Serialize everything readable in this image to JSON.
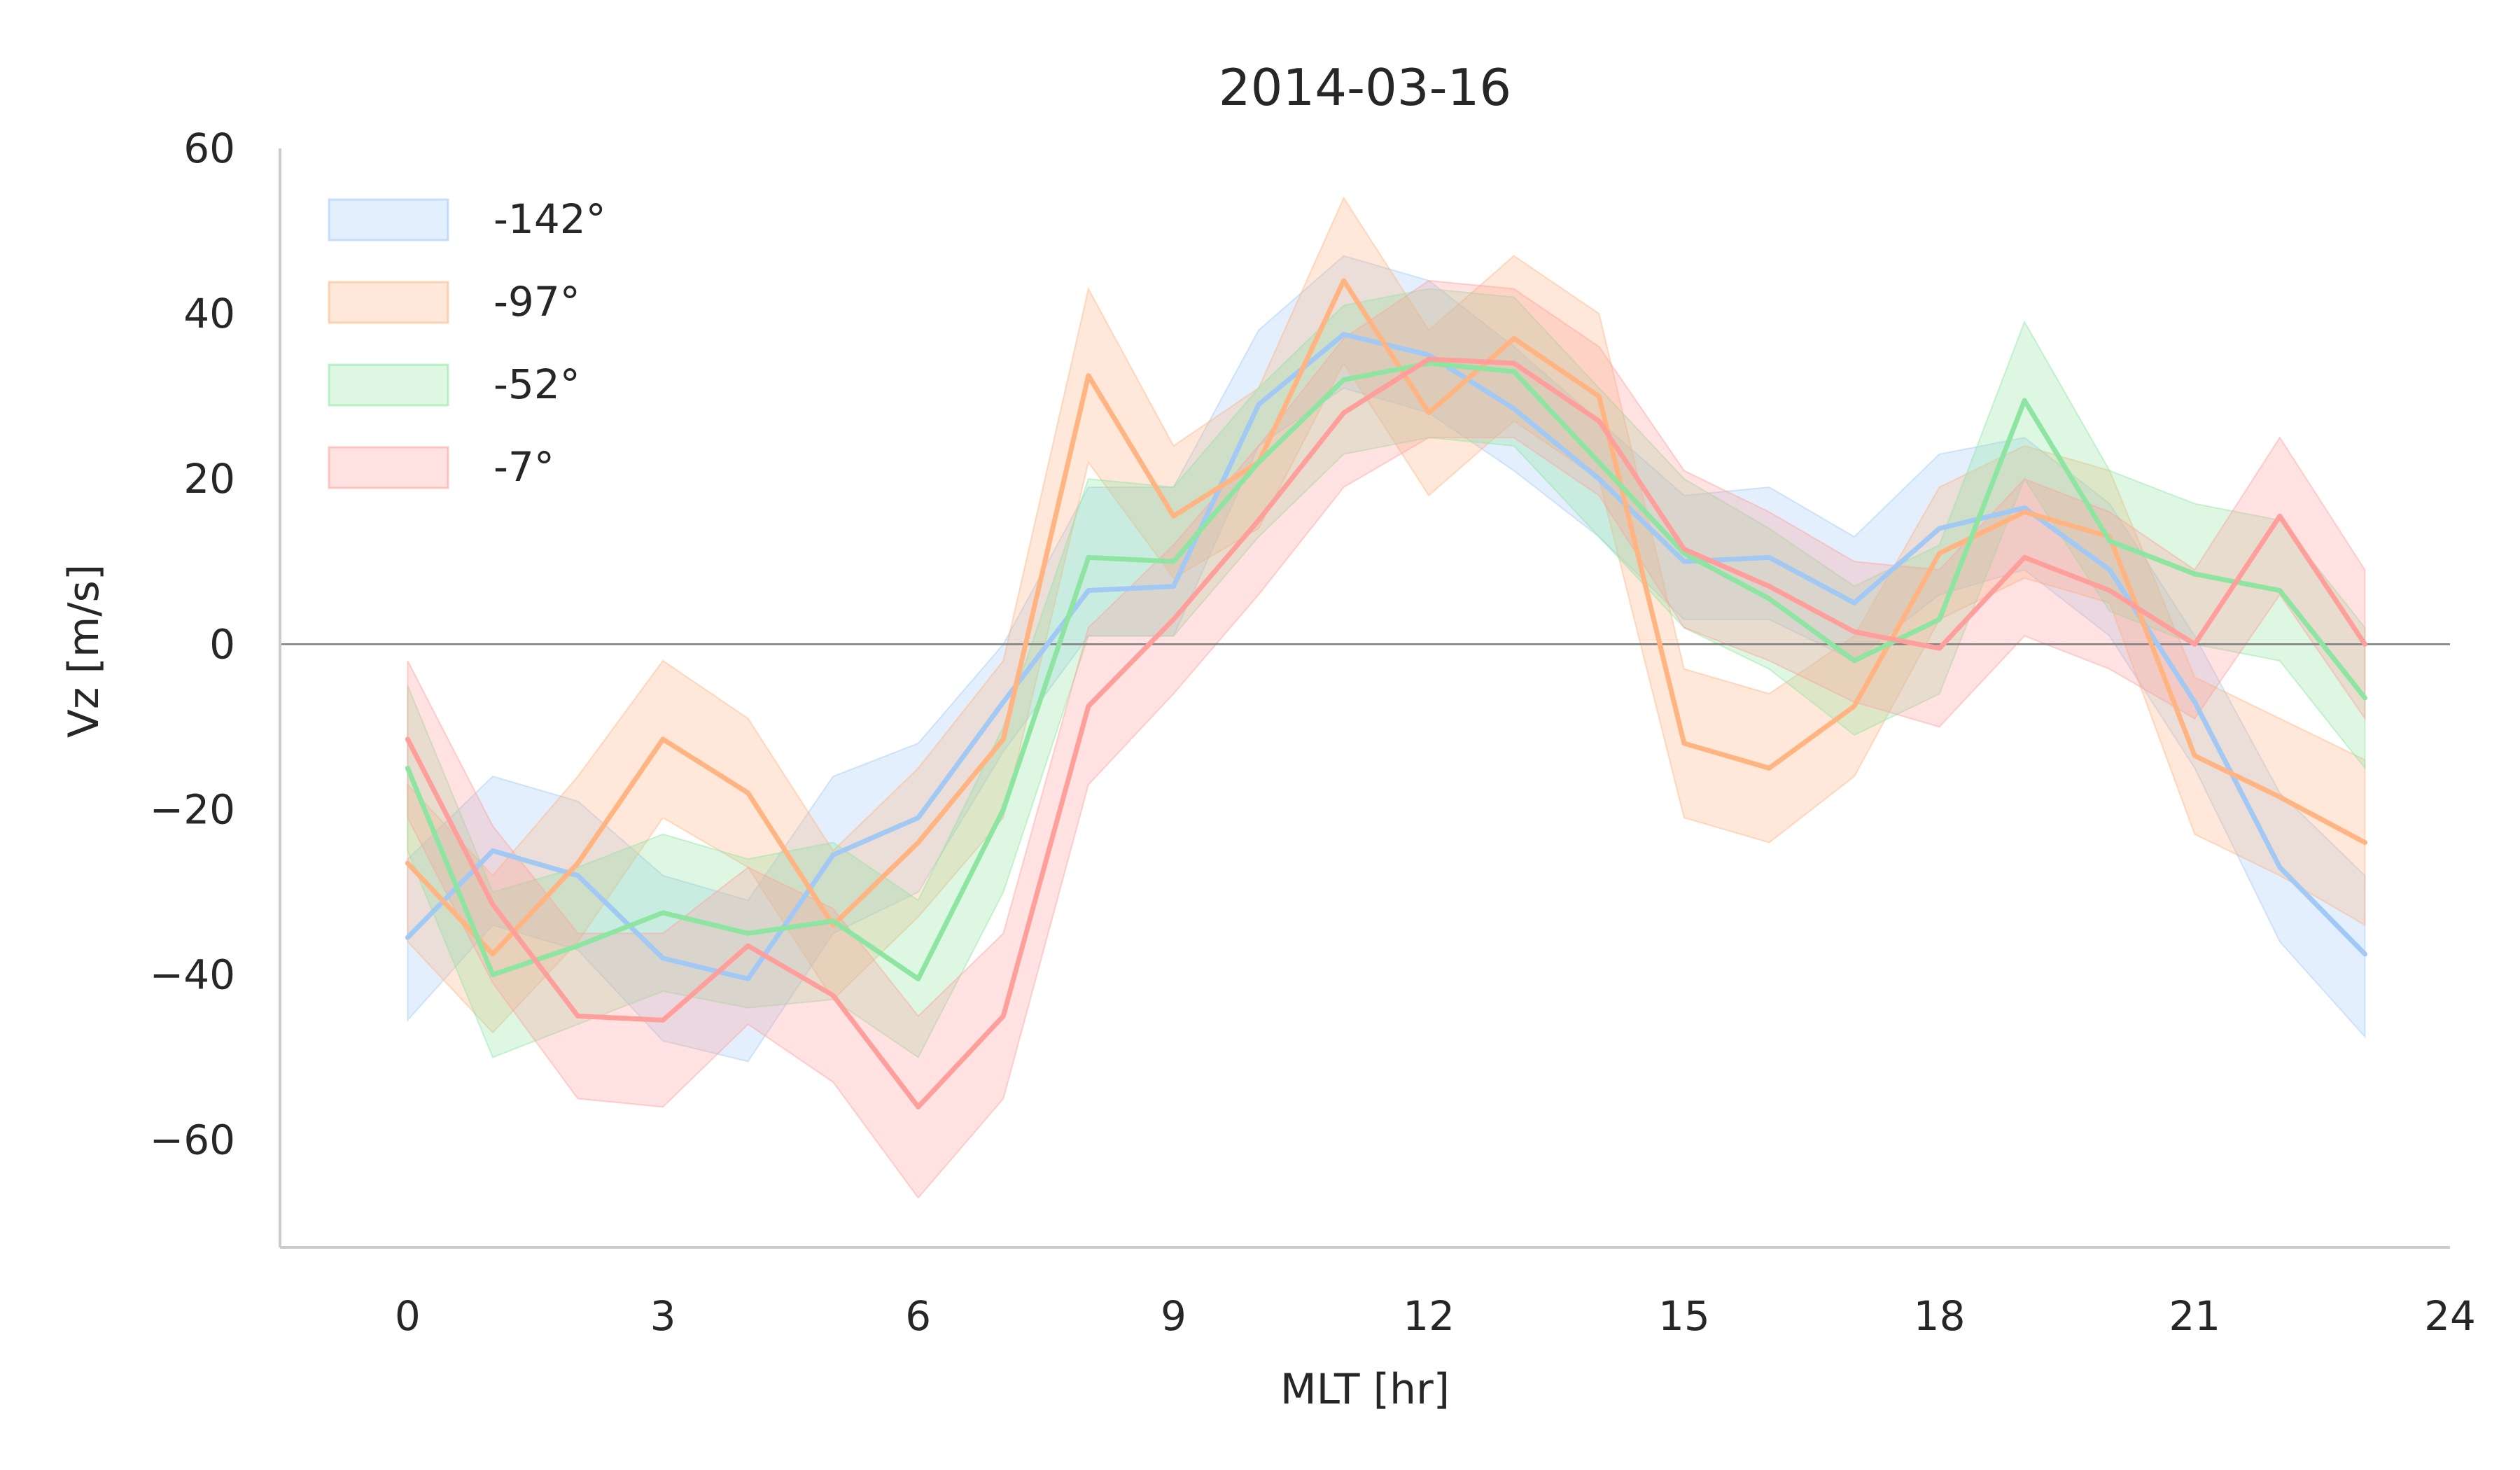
{
  "chart_data": {
    "type": "line",
    "title": "2014-03-16",
    "xlabel": "MLT [hr]",
    "ylabel": "Vz [m/s]",
    "xlim": [
      -1.5,
      24
    ],
    "ylim": [
      -73,
      60
    ],
    "xticks": [
      0,
      3,
      6,
      9,
      12,
      15,
      18,
      21,
      24
    ],
    "yticks": [
      -60,
      -40,
      -20,
      0,
      20,
      40,
      60
    ],
    "xtick_labels": [
      "0",
      "3",
      "6",
      "9",
      "12",
      "15",
      "18",
      "21",
      "24"
    ],
    "ytick_labels": [
      "−60",
      "−40",
      "−20",
      "0",
      "20",
      "40",
      "60"
    ],
    "grid": false,
    "reference_line_y": 0,
    "legend_position": "top-left",
    "x": [
      0,
      1,
      2,
      3,
      4,
      5,
      6,
      7,
      8,
      9,
      10,
      11,
      12,
      13,
      14,
      15,
      16,
      17,
      18,
      19,
      20,
      21,
      22,
      23
    ],
    "series": [
      {
        "name": "-142°",
        "color": "#a1c9f4",
        "values": [
          -35.5,
          -25,
          -28,
          -38,
          -40.5,
          -25.5,
          -21,
          -7,
          6.5,
          7,
          29,
          37.5,
          35,
          28.5,
          20,
          10,
          10.5,
          5,
          14,
          16.5,
          9,
          -7,
          -27,
          -37.5
        ],
        "lower": [
          -45.5,
          -34,
          -37,
          -48,
          -50.5,
          -35,
          -30,
          -13,
          1,
          1,
          24,
          31,
          28,
          21,
          13,
          3,
          3,
          -2,
          6,
          9,
          1,
          -15,
          -36,
          -47.5
        ],
        "upper": [
          -26,
          -16,
          -19,
          -28,
          -31,
          -16,
          -12,
          0,
          19,
          19,
          38,
          47,
          44,
          36,
          27,
          18,
          19,
          13,
          23,
          25,
          17,
          1,
          -18,
          -28
        ]
      },
      {
        "name": "-97°",
        "color": "#ffb482",
        "values": [
          -26.5,
          -37.5,
          -26.5,
          -11.5,
          -18,
          -34,
          -24,
          -11.5,
          32.5,
          15.5,
          22,
          44,
          28,
          37,
          30,
          -12,
          -15,
          -7.5,
          11,
          16,
          13,
          -13.5,
          -18.5,
          -24
        ],
        "lower": [
          -36,
          -47,
          -36,
          -21,
          -27,
          -43,
          -33,
          -21,
          22,
          8,
          14,
          34,
          18,
          27,
          20,
          -21,
          -24,
          -16,
          3,
          8,
          5,
          -23,
          -28,
          -34
        ],
        "upper": [
          -17,
          -28,
          -16,
          -2,
          -9,
          -25,
          -15,
          -2,
          43,
          24,
          31,
          54,
          38,
          47,
          40,
          -3,
          -6,
          1,
          19,
          24,
          21,
          -4,
          -9,
          -14
        ]
      },
      {
        "name": "-52°",
        "color": "#8de5a1",
        "values": [
          -15,
          -40,
          -36.5,
          -32.5,
          -35,
          -33.5,
          -40.5,
          -20,
          10.5,
          10,
          22,
          32,
          34,
          33,
          22,
          11,
          5.5,
          -2,
          3,
          29.5,
          12.5,
          8.5,
          6.5,
          -6.5
        ],
        "lower": [
          -25,
          -50,
          -46,
          -42,
          -44,
          -43,
          -50,
          -30,
          1,
          1,
          13,
          23,
          25,
          24,
          13,
          2,
          -3,
          -11,
          -6,
          20,
          4,
          0,
          -2,
          -15
        ],
        "upper": [
          -5,
          -30,
          -27,
          -23,
          -26,
          -24,
          -31,
          -10,
          20,
          19,
          31,
          41,
          43,
          42,
          31,
          20,
          14,
          7,
          12,
          39,
          21,
          17,
          15,
          2
        ]
      },
      {
        "name": "-7°",
        "color": "#ff9f9b",
        "values": [
          -11.5,
          -31.5,
          -45,
          -45.5,
          -36.5,
          -42.5,
          -56,
          -45,
          -7.5,
          3,
          15,
          28,
          34.5,
          34,
          27,
          11.5,
          7,
          1.5,
          -0.5,
          10.5,
          6.5,
          0,
          15.5,
          0
        ],
        "lower": [
          -21,
          -41,
          -55,
          -56,
          -46,
          -53,
          -67,
          -55,
          -17,
          -6,
          6,
          19,
          25,
          25,
          18,
          2,
          -2,
          -7,
          -10,
          1,
          -3,
          -9,
          6,
          -9
        ],
        "upper": [
          -2,
          -22,
          -35,
          -35,
          -27,
          -32,
          -45,
          -35,
          2,
          12,
          24,
          37,
          44,
          43,
          36,
          21,
          16,
          10,
          9,
          20,
          16,
          9,
          25,
          9
        ]
      }
    ]
  }
}
